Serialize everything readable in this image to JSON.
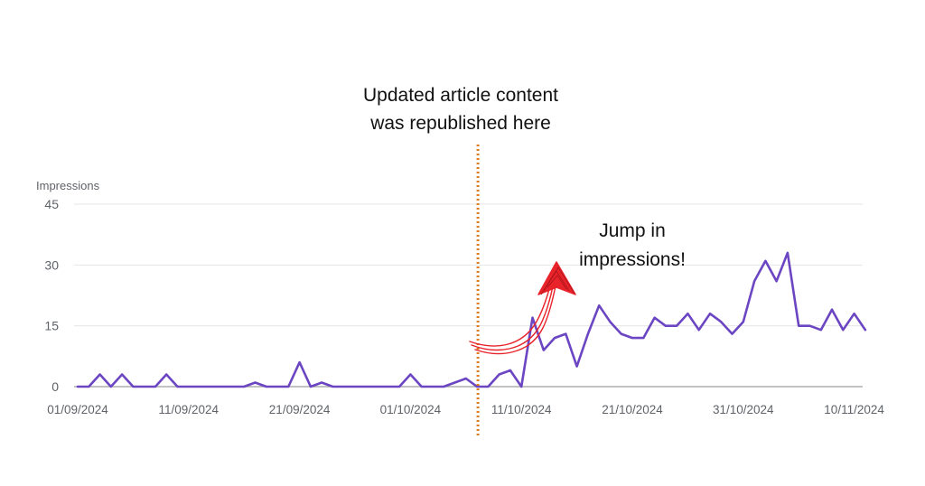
{
  "chart_data": {
    "type": "line",
    "ylabel": "Impressions",
    "ylim": [
      0,
      45
    ],
    "yticks": [
      "45",
      "30",
      "15",
      "0"
    ],
    "ytick_values": [
      45,
      30,
      15,
      0
    ],
    "xtick_labels": [
      "01/09/2024",
      "11/09/2024",
      "21/09/2024",
      "01/10/2024",
      "11/10/2024",
      "21/10/2024",
      "31/10/2024",
      "10/11/2024"
    ],
    "grid": true,
    "series": [
      {
        "color": "#6b45c2",
        "x": [
          "01/09/2024",
          "02/09/2024",
          "03/09/2024",
          "04/09/2024",
          "05/09/2024",
          "06/09/2024",
          "07/09/2024",
          "08/09/2024",
          "09/09/2024",
          "10/09/2024",
          "11/09/2024",
          "12/09/2024",
          "13/09/2024",
          "14/09/2024",
          "15/09/2024",
          "16/09/2024",
          "17/09/2024",
          "18/09/2024",
          "19/09/2024",
          "20/09/2024",
          "21/09/2024",
          "22/09/2024",
          "23/09/2024",
          "24/09/2024",
          "25/09/2024",
          "26/09/2024",
          "27/09/2024",
          "28/09/2024",
          "29/09/2024",
          "30/09/2024",
          "01/10/2024",
          "02/10/2024",
          "03/10/2024",
          "04/10/2024",
          "05/10/2024",
          "06/10/2024",
          "07/10/2024",
          "08/10/2024",
          "09/10/2024",
          "10/10/2024",
          "11/10/2024",
          "12/10/2024",
          "13/10/2024",
          "14/10/2024",
          "15/10/2024",
          "16/10/2024",
          "17/10/2024",
          "18/10/2024",
          "19/10/2024",
          "20/10/2024",
          "21/10/2024",
          "22/10/2024",
          "23/10/2024",
          "24/10/2024",
          "25/10/2024",
          "26/10/2024",
          "27/10/2024",
          "28/10/2024",
          "29/10/2024",
          "30/10/2024",
          "31/10/2024",
          "01/11/2024",
          "02/11/2024",
          "03/11/2024",
          "04/11/2024",
          "05/11/2024",
          "06/11/2024",
          "07/11/2024",
          "08/11/2024",
          "09/11/2024",
          "10/11/2024",
          "11/11/2024"
        ],
        "values": [
          0,
          0,
          3,
          0,
          3,
          0,
          0,
          0,
          3,
          0,
          0,
          0,
          0,
          0,
          0,
          0,
          1,
          0,
          0,
          0,
          6,
          0,
          1,
          0,
          0,
          0,
          0,
          0,
          0,
          0,
          3,
          0,
          0,
          0,
          1,
          2,
          0,
          0,
          3,
          4,
          0,
          17,
          9,
          12,
          13,
          5,
          13,
          20,
          16,
          13,
          12,
          12,
          17,
          15,
          15,
          18,
          14,
          18,
          16,
          13,
          16,
          26,
          31,
          26,
          33,
          15,
          15,
          14,
          19,
          14,
          18,
          14
        ]
      }
    ],
    "annotations": [
      {
        "text_lines": [
          "Updated article content",
          "was republished here"
        ],
        "at_x": "07/10/2024",
        "style": "vertical dotted line",
        "color": "#e07b1a"
      },
      {
        "text_lines": [
          "Jump in",
          "impressions!"
        ],
        "arrow": "red hand-drawn arrow",
        "color": "#e8232a"
      }
    ]
  }
}
